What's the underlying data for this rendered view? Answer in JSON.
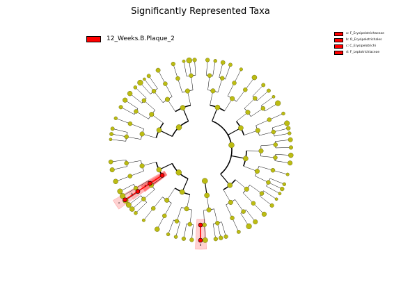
{
  "title": "Significantly Represented Taxa",
  "colors": {
    "node": "#bcbc12",
    "node_edge": "#555500",
    "highlight": "#ff0000",
    "highlight_shade": "#ff9999",
    "edge": "#000000"
  },
  "legend": {
    "group_label": "12_Weeks.B.Plaque_2"
  },
  "taxa_legend": [
    {
      "text": "a: F_Erysipelotrichaceae"
    },
    {
      "text": "b: O_Erysipelotrichales"
    },
    {
      "text": "c: C_Erysipelotrichi"
    },
    {
      "text": "d: F_Leptotrichiaceae"
    }
  ],
  "cladogram_labels": [
    "a",
    "b",
    "c",
    "d"
  ]
}
